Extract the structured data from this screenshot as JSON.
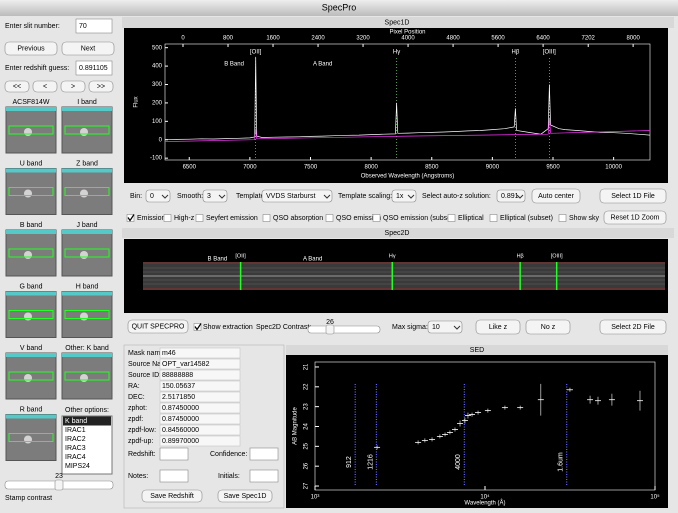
{
  "window_title": "SpecPro",
  "left_panel": {
    "slit_label": "Enter slit number:",
    "slit_value": "70",
    "previous": "Previous",
    "next": "Next",
    "redshift_label": "Enter redshift guess:",
    "redshift_value": "0.891105",
    "nav": [
      "<<",
      "<",
      ">",
      ">>"
    ],
    "stamps": [
      "ACSF814W",
      "I band",
      "U band",
      "Z band",
      "B band",
      "J band",
      "G band",
      "H band",
      "V band",
      "Other: K band",
      "R band"
    ],
    "other_options_label": "Other options:",
    "other_options": [
      "K band",
      "IRAC1",
      "IRAC2",
      "IRAC3",
      "IRAC4",
      "MIPS24"
    ],
    "contrast_value": "23",
    "contrast_label": "Stamp contrast"
  },
  "spec1d_controls": [
    {
      "label": "Bin:",
      "value": "0"
    },
    {
      "label": "Smooth:",
      "value": "3"
    },
    {
      "label": "Template:",
      "value": "VVDS Starburst"
    },
    {
      "label": "Template scaling:",
      "value": "1x"
    },
    {
      "label": "Select auto-z solution:",
      "value": "0.891"
    }
  ],
  "spec1d_buttons": [
    "Auto center",
    "Select 1D File"
  ],
  "templates": [
    {
      "label": "Emission",
      "checked": true
    },
    {
      "label": "High-z",
      "checked": false
    },
    {
      "label": "Seyfert emission",
      "checked": false
    },
    {
      "label": "QSO absorption",
      "checked": false
    },
    {
      "label": "QSO emission",
      "checked": false
    },
    {
      "label": "QSO emission (subset)",
      "checked": false
    },
    {
      "label": "Elliptical",
      "checked": false
    },
    {
      "label": "Elliptical (subset)",
      "checked": false
    },
    {
      "label": "Show sky",
      "checked": false
    }
  ],
  "reset_zoom": "Reset 1D Zoom",
  "spec2d": {
    "title": "Spec2D"
  },
  "spec2d_controls": {
    "quit": "QUIT SPECPRO",
    "show_extraction": "Show extraction",
    "show_extraction_checked": true,
    "contrast_label": "Spec2D Contrast:",
    "contrast_value": "26",
    "max_sigma_label": "Max sigma:",
    "max_sigma_value": "10",
    "like_z": "Like z",
    "no_z": "No z",
    "select_2d": "Select 2D File"
  },
  "info": {
    "rows": [
      [
        "Mask name:",
        "m46"
      ],
      [
        "Source Name:",
        "OPT_var14582"
      ],
      [
        "Source ID:",
        "88888888"
      ],
      [
        "RA:",
        "150.05637"
      ],
      [
        "DEC:",
        "2.5171850"
      ],
      [
        "zphot:",
        "0.87450000"
      ],
      [
        "zpdf:",
        "0.87450000"
      ],
      [
        "zpdf-low:",
        "0.84560000"
      ],
      [
        "zpdf-up:",
        "0.89970000"
      ]
    ],
    "redshift_label": "Redshift:",
    "confidence_label": "Confidence:",
    "notes_label": "Notes:",
    "initials_label": "Initials:",
    "save_redshift": "Save Redshift",
    "save_spec1d": "Save Spec1D"
  },
  "chart_data": [
    {
      "type": "line",
      "title": "Spec1D",
      "xlabel": "Observed Wavelength (Angstroms)",
      "ylabel": "Flux",
      "x2label": "Pixel Position",
      "x": [
        6300,
        6400,
        6500,
        6600,
        6700,
        6800,
        6900,
        7000,
        7040,
        7048,
        7056,
        7100,
        7200,
        7300,
        7400,
        7500,
        7600,
        7700,
        7800,
        7900,
        8000,
        8100,
        8200,
        8210,
        8220,
        8300,
        8400,
        8500,
        8600,
        8700,
        8800,
        8900,
        9000,
        9100,
        9180,
        9190,
        9200,
        9300,
        9400,
        9460,
        9470,
        9480,
        9550,
        9600,
        9700,
        9800,
        9900,
        10000,
        10100,
        10200,
        10300
      ],
      "series": [
        {
          "color": "#ffffff",
          "values": [
            0,
            2,
            3,
            5,
            4,
            6,
            8,
            10,
            15,
            450,
            20,
            12,
            14,
            15,
            16,
            18,
            20,
            22,
            24,
            25,
            28,
            30,
            32,
            200,
            35,
            36,
            38,
            40,
            42,
            45,
            48,
            50,
            55,
            60,
            70,
            170,
            50,
            40,
            30,
            60,
            300,
            80,
            60,
            55,
            50,
            45,
            40,
            38,
            35,
            30,
            25
          ]
        },
        {
          "color": "#ff33ff",
          "x": [
            6300,
            7040,
            7048,
            7056,
            8300,
            9460,
            9470,
            9480,
            10300
          ],
          "values": [
            -10,
            0,
            60,
            5,
            20,
            30,
            120,
            35,
            50
          ]
        }
      ],
      "xlim": [
        6300,
        10300
      ],
      "xticks": [
        6500,
        7000,
        7500,
        8000,
        8500,
        9000,
        9500,
        10000
      ],
      "ylim": [
        -110,
        520
      ],
      "yticks": [
        -100,
        0,
        100,
        200,
        300,
        400,
        500
      ],
      "x2lim": [
        -320,
        8300
      ],
      "x2ticks": [
        0,
        800,
        1600,
        2400,
        3200,
        4000,
        4800,
        5600,
        6400,
        7202,
        8000
      ],
      "bands": [
        {
          "label": "B Band",
          "x": 6870
        },
        {
          "label": "A Band",
          "x": 7600
        }
      ],
      "lines": [
        {
          "label": "[OII]",
          "x": 7048
        },
        {
          "label": "Hγ",
          "x": 8210
        },
        {
          "label": "Hβ",
          "x": 9190
        },
        {
          "label": "[OIII]",
          "x": 9470
        }
      ]
    },
    {
      "type": "scatter",
      "title": "SED",
      "xlabel": "Wavelength (Å)",
      "ylabel": "AB Magnitude",
      "log_x": true,
      "y_inverted": true,
      "color": "#ffffff",
      "x": [
        2318,
        4040,
        4430,
        4880,
        5430,
        5820,
        6220,
        6660,
        7130,
        7620,
        7940,
        8390,
        9100,
        10400,
        13100,
        16100,
        21300,
        31600,
        41500,
        46200,
        55800,
        81600
      ],
      "values": [
        25.05,
        24.8,
        24.7,
        24.65,
        24.5,
        24.4,
        24.3,
        24.15,
        23.85,
        23.7,
        23.45,
        23.4,
        23.3,
        23.2,
        23.05,
        23.05,
        22.65,
        22.15,
        22.65,
        22.7,
        22.65,
        22.7
      ],
      "yerr": [
        0.1,
        0.1,
        0.1,
        0.1,
        0.1,
        0.1,
        0.1,
        0.1,
        0.15,
        0.15,
        0.15,
        0.1,
        0.1,
        0.1,
        0.1,
        0.1,
        0.8,
        0.1,
        0.2,
        0.2,
        0.3,
        0.5
      ],
      "xlim": [
        1000,
        100000
      ],
      "xticks": [
        {
          "value": 1000,
          "label": "10³"
        },
        {
          "value": 10000,
          "label": "10⁴"
        },
        {
          "value": 100000,
          "label": "10⁵"
        }
      ],
      "ylim": [
        20.75,
        27.2
      ],
      "yticks": [
        21,
        22,
        23,
        24,
        25,
        26,
        27
      ],
      "annotations": [
        {
          "label": "912",
          "x": 1724
        },
        {
          "label": "1216",
          "x": 2298
        },
        {
          "label": "4000",
          "x": 7560
        },
        {
          "label": "1.6um",
          "x": 30240
        }
      ]
    }
  ]
}
